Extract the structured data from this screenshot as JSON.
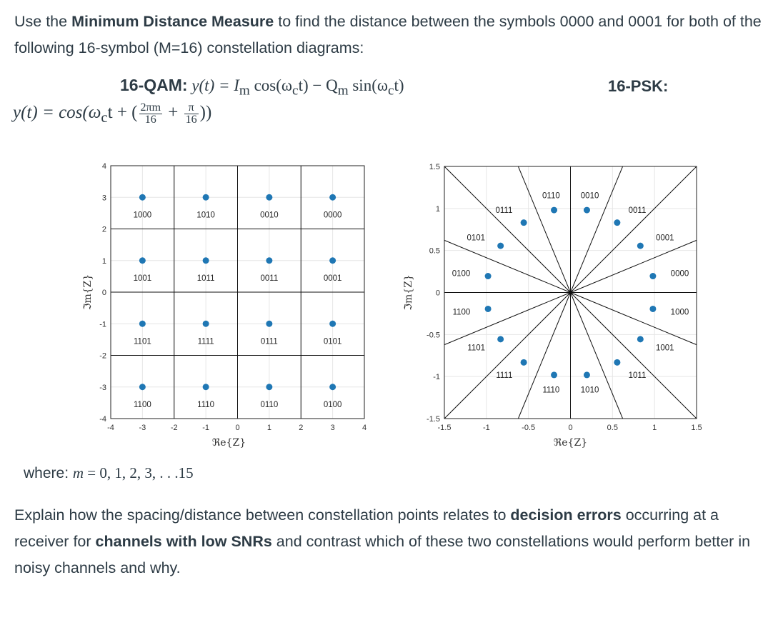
{
  "intro": {
    "p1": "Use the ",
    "b1": "Minimum Distance Measure",
    "p2": " to find the distance between the symbols 0000 and 0001 for both of the following 16-symbol (M=16) constellation diagrams:"
  },
  "qam_eq": {
    "label": "16-QAM:",
    "formula": "y(t) = I",
    "sub_m": "m",
    "formula2": " cos(ω",
    "sub_c": "c",
    "formula3": "t) − Q",
    "formula4": " sin(ω",
    "formula5": "t)"
  },
  "psk_label": "16-PSK:",
  "psk_eq": {
    "prefix": "y(t) = cos(ω",
    "sub_c": "c",
    "mid": "t + (",
    "frac1_num": "2πm",
    "frac1_den": "16",
    "plus": " + ",
    "frac2_num": "π",
    "frac2_den": "16",
    "end": "))"
  },
  "where": {
    "prefix": "where: ",
    "m": "m",
    "rest": " = 0, 1, 2, 3, . . .15"
  },
  "explain": {
    "p1": "Explain how the spacing/distance between constellation points relates to ",
    "b1": "decision errors",
    "p2": " occurring at a receiver for ",
    "b2": "channels with low SNRs",
    "p3": " and contrast which of these two constellations would perform better in noisy channels and why."
  },
  "colors": {
    "point": "#1f77b4",
    "grid": "#e6e6e6",
    "boundary": "#111111"
  },
  "chart_data": [
    {
      "type": "scatter",
      "name": "16-QAM",
      "xlabel": "ℜe{Z}",
      "ylabel": "ℑm{Z}",
      "xlim": [
        -4,
        4
      ],
      "ylim": [
        -4,
        4
      ],
      "xticks": [
        -4,
        -3,
        -2,
        -1,
        0,
        1,
        2,
        3,
        4
      ],
      "yticks": [
        -4,
        -3,
        -2,
        -1,
        0,
        1,
        2,
        3,
        4
      ],
      "grid": true,
      "points": [
        {
          "x": -3,
          "y": 3,
          "label": "1000"
        },
        {
          "x": -1,
          "y": 3,
          "label": "1010"
        },
        {
          "x": 1,
          "y": 3,
          "label": "0010"
        },
        {
          "x": 3,
          "y": 3,
          "label": "0000"
        },
        {
          "x": -3,
          "y": 1,
          "label": "1001"
        },
        {
          "x": -1,
          "y": 1,
          "label": "1011"
        },
        {
          "x": 1,
          "y": 1,
          "label": "0011"
        },
        {
          "x": 3,
          "y": 1,
          "label": "0001"
        },
        {
          "x": -3,
          "y": -1,
          "label": "1101"
        },
        {
          "x": -1,
          "y": -1,
          "label": "1111"
        },
        {
          "x": 1,
          "y": -1,
          "label": "0111"
        },
        {
          "x": 3,
          "y": -1,
          "label": "0101"
        },
        {
          "x": -3,
          "y": -3,
          "label": "1100"
        },
        {
          "x": -1,
          "y": -3,
          "label": "1110"
        },
        {
          "x": 1,
          "y": -3,
          "label": "0110"
        },
        {
          "x": 3,
          "y": -3,
          "label": "0100"
        }
      ],
      "decision_lines": [
        -2,
        0,
        2
      ]
    },
    {
      "type": "scatter",
      "name": "16-PSK",
      "xlabel": "ℜe{Z}",
      "ylabel": "ℑm{Z}",
      "xlim": [
        -1.5,
        1.5
      ],
      "ylim": [
        -1.5,
        1.5
      ],
      "xticks": [
        -1.5,
        -1,
        -0.5,
        0,
        0.5,
        1,
        1.5
      ],
      "yticks": [
        -1.5,
        -1,
        -0.5,
        0,
        0.5,
        1,
        1.5
      ],
      "grid": true,
      "radius": 1,
      "points": [
        {
          "angle_deg": 11.25,
          "label": "0000"
        },
        {
          "angle_deg": 33.75,
          "label": "0001"
        },
        {
          "angle_deg": 56.25,
          "label": "0011"
        },
        {
          "angle_deg": 78.75,
          "label": "0010"
        },
        {
          "angle_deg": 101.25,
          "label": "0110"
        },
        {
          "angle_deg": 123.75,
          "label": "0111"
        },
        {
          "angle_deg": 146.25,
          "label": "0101"
        },
        {
          "angle_deg": 168.75,
          "label": "0100"
        },
        {
          "angle_deg": 191.25,
          "label": "1100"
        },
        {
          "angle_deg": 213.75,
          "label": "1101"
        },
        {
          "angle_deg": 236.25,
          "label": "1111"
        },
        {
          "angle_deg": 258.75,
          "label": "1110"
        },
        {
          "angle_deg": 281.25,
          "label": "1010"
        },
        {
          "angle_deg": 303.75,
          "label": "1011"
        },
        {
          "angle_deg": 326.25,
          "label": "1001"
        },
        {
          "angle_deg": 348.75,
          "label": "1000"
        }
      ],
      "decision_angles_deg": [
        0,
        22.5,
        45,
        67.5,
        90,
        112.5,
        135,
        157.5,
        180,
        202.5,
        225,
        247.5,
        270,
        292.5,
        315,
        337.5
      ]
    }
  ]
}
